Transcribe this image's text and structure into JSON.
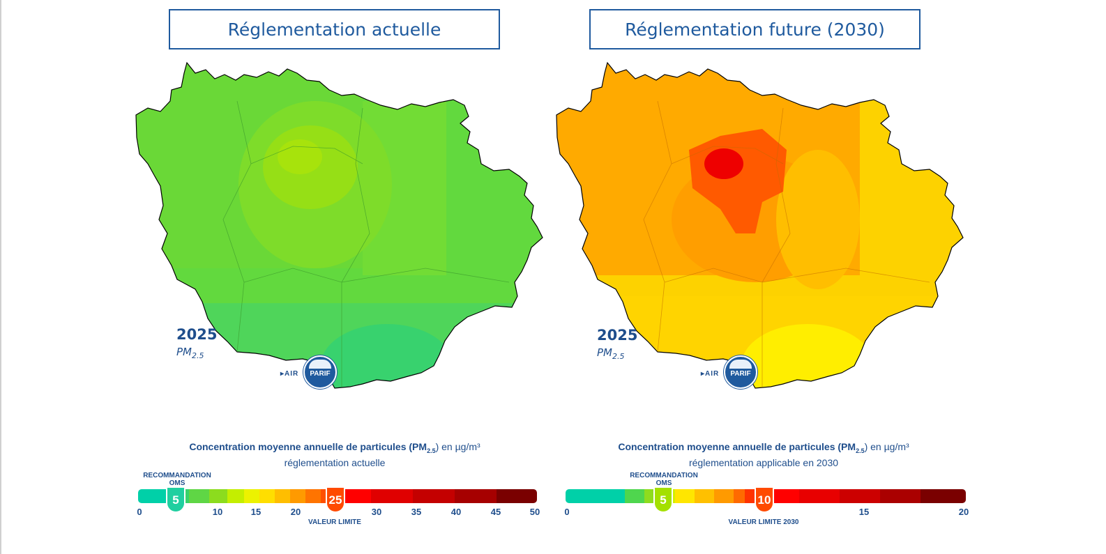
{
  "left_panel": {
    "title": "Réglementation actuelle",
    "year": "2025",
    "pollutant": "PM",
    "pollutant_sub": "2.5",
    "logo": {
      "air": "▸AIR",
      "parif": "PARIF"
    },
    "legend": {
      "title": "Concentration moyenne annuelle de particules (PM",
      "title_sub": "2.5",
      "title_end": ") en µg/m³",
      "subtitle": "réglementation actuelle",
      "who_label": "RECOMMANDATION",
      "who_label2": "OMS",
      "who_value": "5",
      "limit_value": "25",
      "limit_label": "VALEUR LIMITE",
      "ticks": [
        "0",
        "10",
        "15",
        "20",
        "30",
        "35",
        "40",
        "45",
        "50"
      ]
    },
    "colors": {
      "base": "#62d93e",
      "mid": "#70dd32",
      "center": "#9fe010",
      "south": "#39d46b"
    }
  },
  "right_panel": {
    "title": "Réglementation future (2030)",
    "year": "2025",
    "pollutant": "PM",
    "pollutant_sub": "2.5",
    "logo": {
      "air": "▸AIR",
      "parif": "PARIF"
    },
    "legend": {
      "title": "Concentration moyenne annuelle de particules (PM",
      "title_sub": "2.5",
      "title_end": ") en µg/m³",
      "subtitle": "réglementation applicable en 2030",
      "who_label": "RECOMMANDATION",
      "who_label2": "OMS",
      "who_value": "5",
      "limit_value": "10",
      "limit_label": "VALEUR LIMITE 2030",
      "ticks": [
        "0",
        "15",
        "20"
      ]
    },
    "colors": {
      "base": "#fdd200",
      "mid": "#ffaa00",
      "center": "#ff5a00",
      "core": "#ee0000",
      "south": "#ffff00"
    }
  }
}
